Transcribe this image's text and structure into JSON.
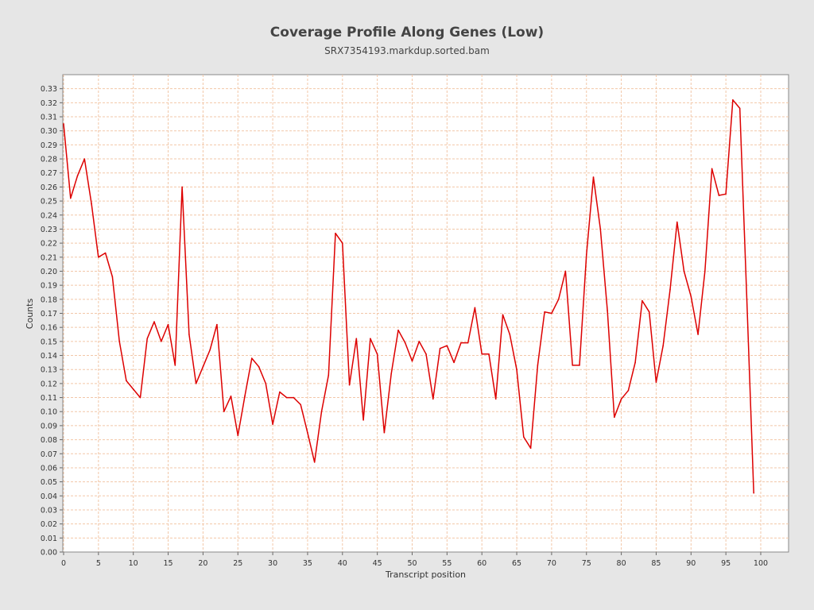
{
  "chart_data": {
    "type": "line",
    "title": "Coverage Profile Along Genes (Low)",
    "subtitle": "SRX7354193.markdup.sorted.bam",
    "xlabel": "Transcript position",
    "ylabel": "Counts",
    "xlim": [
      0,
      104
    ],
    "ylim": [
      0,
      0.34
    ],
    "x_ticks": [
      0,
      5,
      10,
      15,
      20,
      25,
      30,
      35,
      40,
      45,
      50,
      55,
      60,
      65,
      70,
      75,
      80,
      85,
      90,
      95,
      100
    ],
    "y_ticks": [
      "0.00",
      "0.01",
      "0.02",
      "0.03",
      "0.04",
      "0.05",
      "0.06",
      "0.07",
      "0.08",
      "0.09",
      "0.10",
      "0.11",
      "0.12",
      "0.13",
      "0.14",
      "0.15",
      "0.16",
      "0.17",
      "0.18",
      "0.19",
      "0.20",
      "0.21",
      "0.22",
      "0.23",
      "0.24",
      "0.25",
      "0.26",
      "0.27",
      "0.28",
      "0.29",
      "0.30",
      "0.31",
      "0.32",
      "0.33"
    ],
    "grid": true,
    "series": [
      {
        "color": "#dd0000",
        "x": [
          0,
          1,
          2,
          3,
          4,
          5,
          6,
          7,
          8,
          9,
          10,
          11,
          12,
          13,
          14,
          15,
          16,
          17,
          18,
          19,
          20,
          21,
          22,
          23,
          24,
          25,
          26,
          27,
          28,
          29,
          30,
          31,
          32,
          33,
          34,
          35,
          36,
          37,
          38,
          39,
          40,
          41,
          42,
          43,
          44,
          45,
          46,
          47,
          48,
          49,
          50,
          51,
          52,
          53,
          54,
          55,
          56,
          57,
          58,
          59,
          60,
          61,
          62,
          63,
          64,
          65,
          66,
          67,
          68,
          69,
          70,
          71,
          72,
          73,
          74,
          75,
          76,
          77,
          78,
          79,
          80,
          81,
          82,
          83,
          84,
          85,
          86,
          87,
          88,
          89,
          90,
          91,
          92,
          93,
          94,
          95,
          96,
          97,
          98,
          99
        ],
        "values": [
          0.305,
          0.252,
          0.268,
          0.28,
          0.248,
          0.21,
          0.213,
          0.196,
          0.15,
          0.122,
          0.116,
          0.11,
          0.152,
          0.164,
          0.15,
          0.162,
          0.133,
          0.26,
          0.155,
          0.12,
          0.132,
          0.144,
          0.162,
          0.1,
          0.111,
          0.083,
          0.111,
          0.138,
          0.132,
          0.12,
          0.091,
          0.114,
          0.11,
          0.11,
          0.105,
          0.085,
          0.064,
          0.1,
          0.126,
          0.227,
          0.22,
          0.119,
          0.152,
          0.094,
          0.152,
          0.141,
          0.085,
          0.127,
          0.158,
          0.149,
          0.136,
          0.15,
          0.141,
          0.109,
          0.145,
          0.147,
          0.135,
          0.149,
          0.149,
          0.174,
          0.141,
          0.141,
          0.109,
          0.169,
          0.155,
          0.13,
          0.082,
          0.074,
          0.133,
          0.171,
          0.17,
          0.18,
          0.2,
          0.133,
          0.133,
          0.212,
          0.267,
          0.23,
          0.172,
          0.096,
          0.109,
          0.115,
          0.135,
          0.179,
          0.171,
          0.121,
          0.147,
          0.187,
          0.235,
          0.2,
          0.182,
          0.155,
          0.2,
          0.273,
          0.254,
          0.255,
          0.322,
          0.316,
          0.18,
          0.042
        ]
      }
    ]
  }
}
